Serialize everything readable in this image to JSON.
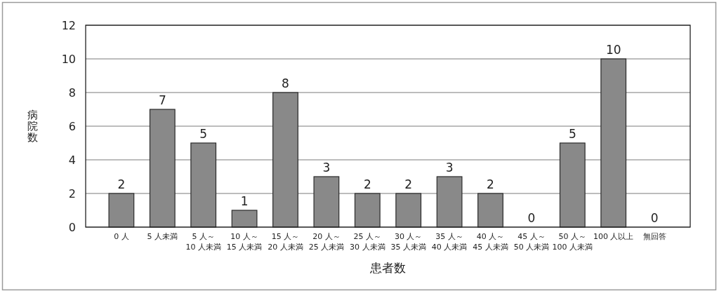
{
  "chart_data": {
    "type": "bar",
    "xlabel": "患者数",
    "ylabel": "病院数",
    "categories": [
      "0 人",
      "5 人未満",
      "5 人～\n10 人未満",
      "10 人～\n15 人未満",
      "15 人～\n20 人未満",
      "20 人～\n25 人未満",
      "25 人～\n30 人未満",
      "30 人～\n35 人未満",
      "35 人～\n40 人未満",
      "40 人～\n45 人未満",
      "45 人～\n50 人未満",
      "50 人～\n100 人未満",
      "100 人以上",
      "無回答"
    ],
    "values": [
      2,
      7,
      5,
      1,
      8,
      3,
      2,
      2,
      3,
      2,
      0,
      5,
      10,
      0
    ],
    "color": "#898989",
    "ylim": [
      0,
      12
    ],
    "yticks": [
      0,
      2,
      4,
      6,
      8,
      10,
      12
    ],
    "grid": "y",
    "data_labels": true
  }
}
